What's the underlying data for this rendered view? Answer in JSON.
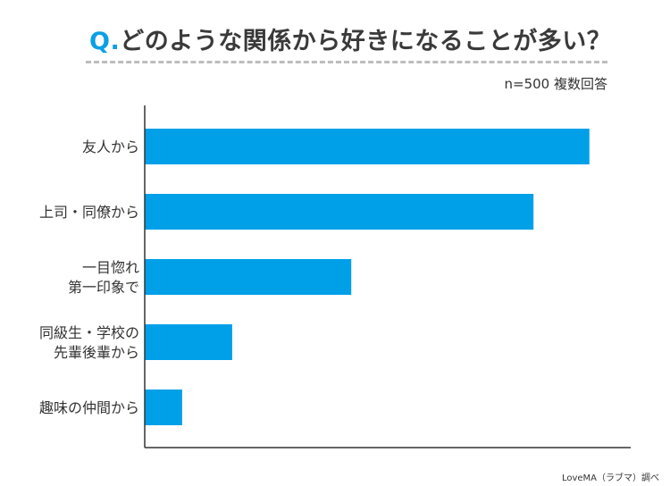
{
  "chart_data": {
    "type": "bar",
    "orientation": "horizontal",
    "title_prefix": "Q.",
    "title": "どのような関係から好きになることが多い？",
    "note": "n=500  複数回答",
    "credit": "LoveMA（ラブマ）調べ",
    "categories": [
      [
        "友人から"
      ],
      [
        "上司・同僚から"
      ],
      [
        "一目惚れ",
        "第一印象で"
      ],
      [
        "同級生・学校の",
        "先輩後輩から"
      ],
      [
        "趣味の仲間から"
      ]
    ],
    "values": [
      91.5,
      80,
      42.5,
      18,
      7.7
    ],
    "xlim": [
      0,
      100
    ],
    "xlabel": "",
    "ylabel": "",
    "grid": false,
    "bar_color": "#00a0e9"
  }
}
